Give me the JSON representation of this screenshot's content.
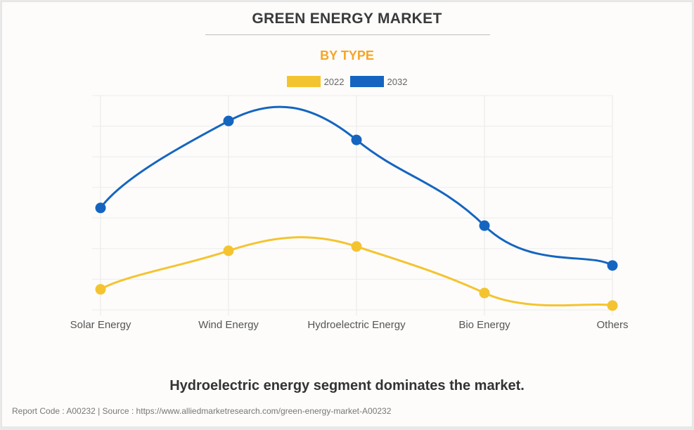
{
  "header": {
    "title": "GREEN ENERGY MARKET",
    "subtitle": "BY TYPE"
  },
  "legend": [
    {
      "label": "2022",
      "color": "#f4c430"
    },
    {
      "label": "2032",
      "color": "#1565c0"
    }
  ],
  "caption": "Hydroelectric energy segment dominates the market.",
  "footer": "Report Code : A00232  |  Source : https://www.alliedmarketresearch.com/green-energy-market-A00232",
  "chart_data": {
    "type": "line",
    "title": "GREEN ENERGY MARKET",
    "subtitle": "BY TYPE",
    "xlabel": "",
    "ylabel": "",
    "categories": [
      "Solar Energy",
      "Wind Energy",
      "Hydroelectric Energy",
      "Bio Energy",
      "Others"
    ],
    "ylim": [
      0,
      7
    ],
    "y_tick_labels_visible": false,
    "grid": true,
    "smooth": true,
    "legend_position": "top-center",
    "series": [
      {
        "name": "2022",
        "color": "#f4c430",
        "values": [
          0.67,
          1.93,
          2.07,
          0.55,
          0.14
        ]
      },
      {
        "name": "2032",
        "color": "#1565c0",
        "values": [
          3.33,
          6.17,
          5.55,
          2.75,
          1.45
        ]
      }
    ]
  }
}
